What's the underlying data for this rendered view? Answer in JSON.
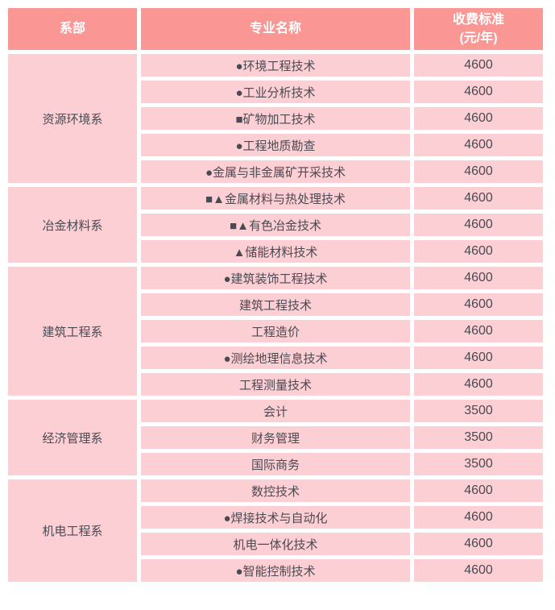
{
  "table": {
    "header": {
      "department": "系部",
      "major": "专业名称",
      "fee_line1": "收费标准",
      "fee_line2": "(元/年)"
    },
    "groups": [
      {
        "department": "资源环境系",
        "majors": [
          {
            "name": "●环境工程技术",
            "fee": "4600"
          },
          {
            "name": "●工业分析技术",
            "fee": "4600"
          },
          {
            "name": "■矿物加工技术",
            "fee": "4600"
          },
          {
            "name": "●工程地质勘查",
            "fee": "4600"
          },
          {
            "name": "●金属与非金属矿开采技术",
            "fee": "4600"
          }
        ]
      },
      {
        "department": "冶金材料系",
        "majors": [
          {
            "name": "■▲金属材料与热处理技术",
            "fee": "4600"
          },
          {
            "name": "■▲有色冶金技术",
            "fee": "4600"
          },
          {
            "name": "▲储能材料技术",
            "fee": "4600"
          }
        ]
      },
      {
        "department": "建筑工程系",
        "majors": [
          {
            "name": "●建筑装饰工程技术",
            "fee": "4600"
          },
          {
            "name": "建筑工程技术",
            "fee": "4600"
          },
          {
            "name": "工程造价",
            "fee": "4600"
          },
          {
            "name": "●测绘地理信息技术",
            "fee": "4600"
          },
          {
            "name": "工程测量技术",
            "fee": "4600"
          }
        ]
      },
      {
        "department": "经济管理系",
        "majors": [
          {
            "name": "会计",
            "fee": "3500"
          },
          {
            "name": "财务管理",
            "fee": "3500"
          },
          {
            "name": "国际商务",
            "fee": "3500"
          }
        ]
      },
      {
        "department": "机电工程系",
        "majors": [
          {
            "name": "数控技术",
            "fee": "4600"
          },
          {
            "name": "●焊接技术与自动化",
            "fee": "4600"
          },
          {
            "name": "机电一体化技术",
            "fee": "4600"
          },
          {
            "name": "●智能控制技术",
            "fee": "4600"
          }
        ]
      }
    ]
  },
  "colors": {
    "header_bg": "#fa9694",
    "cell_bg": "#fccfd4",
    "header_text": "#ffffff",
    "cell_text": "#4a4a52",
    "gap": "#ffffff"
  }
}
